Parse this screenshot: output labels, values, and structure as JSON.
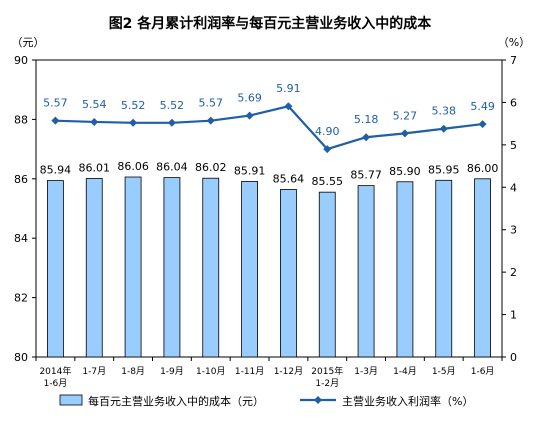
{
  "chart_data": {
    "type": "bar+line",
    "title": "图2  各月累计利润率与每百元主营业务收入中的成本",
    "left_unit": "（元）",
    "right_unit": "（%）",
    "categories": [
      "2014年\n1-6月",
      "1-7月",
      "1-8月",
      "1-9月",
      "1-10月",
      "1-11月",
      "1-12月",
      "2015年\n1-2月",
      "1-3月",
      "1-4月",
      "1-5月",
      "1-6月"
    ],
    "y_left": {
      "min": 80,
      "max": 90,
      "ticks": [
        80,
        82,
        84,
        86,
        88,
        90
      ]
    },
    "y_right": {
      "min": 0,
      "max": 7,
      "ticks": [
        0,
        1,
        2,
        3,
        4,
        5,
        6,
        7
      ]
    },
    "grid": false,
    "legend_position": "bottom",
    "series": [
      {
        "name": "每百元主营业务收入中的成本（元）",
        "type": "bar",
        "axis": "left",
        "color": "#99CCFF",
        "values": [
          85.94,
          86.01,
          86.06,
          86.04,
          86.02,
          85.91,
          85.64,
          85.55,
          85.77,
          85.9,
          85.95,
          86.0
        ],
        "labels": [
          "85.94",
          "86.01",
          "86.06",
          "86.04",
          "86.02",
          "85.91",
          "85.64",
          "85.55",
          "85.77",
          "85.90",
          "85.95",
          "86.00"
        ]
      },
      {
        "name": "主营业务收入利润率（%）",
        "type": "line",
        "axis": "right",
        "color": "#1F5FA8",
        "values": [
          5.57,
          5.54,
          5.52,
          5.52,
          5.57,
          5.69,
          5.91,
          4.9,
          5.18,
          5.27,
          5.38,
          5.49
        ],
        "labels": [
          "5.57",
          "5.54",
          "5.52",
          "5.52",
          "5.57",
          "5.69",
          "5.91",
          "4.90",
          "5.18",
          "5.27",
          "5.38",
          "5.49"
        ]
      }
    ]
  }
}
